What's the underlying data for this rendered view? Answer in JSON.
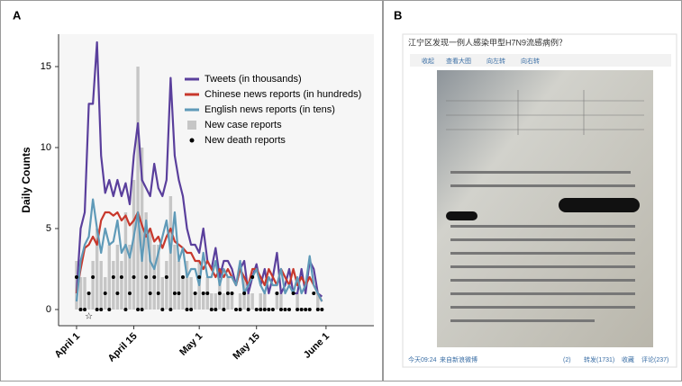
{
  "panel_labels": [
    "A",
    "B"
  ],
  "chart_data": {
    "type": "line",
    "ylabel": "Daily Counts",
    "xlim": [
      -4.4,
      72.7
    ],
    "ylim": [
      -1,
      17
    ],
    "xticks": [
      {
        "value": 0,
        "label": "April 1"
      },
      {
        "value": 14,
        "label": "April 15"
      },
      {
        "value": 30,
        "label": "May 1"
      },
      {
        "value": 44,
        "label": "May 15"
      },
      {
        "value": 61,
        "label": "June 1"
      }
    ],
    "yticks": [
      0,
      5,
      10,
      15
    ],
    "legend": "upper right",
    "annotation": "☆",
    "annotation_x": 3,
    "x": [
      0,
      1,
      2,
      3,
      4,
      5,
      6,
      7,
      8,
      9,
      10,
      11,
      12,
      13,
      14,
      15,
      16,
      17,
      18,
      19,
      20,
      21,
      22,
      23,
      24,
      25,
      26,
      27,
      28,
      29,
      30,
      31,
      32,
      33,
      34,
      35,
      36,
      37,
      38,
      39,
      40,
      41,
      42,
      43,
      44,
      45,
      46,
      47,
      48,
      49,
      50,
      51,
      52,
      53,
      54,
      55,
      56,
      57,
      58,
      59,
      60
    ],
    "series": [
      {
        "name": "Tweets (in thousands)",
        "color": "#5a3f9c",
        "style": "line",
        "values": [
          1,
          5,
          6,
          12.7,
          12.7,
          16.5,
          9.5,
          7.2,
          8,
          7,
          8,
          7,
          7.8,
          6.5,
          9.5,
          11.5,
          8,
          7.5,
          7,
          9,
          7.5,
          7,
          8,
          14.3,
          9.5,
          8,
          7,
          5,
          4,
          4,
          3.5,
          5,
          3,
          2.5,
          3.8,
          2,
          3,
          3,
          2.5,
          1.5,
          2.5,
          3,
          1,
          2,
          2.8,
          1.5,
          2.5,
          1,
          2,
          3.5,
          1,
          1.5,
          2.5,
          1,
          1,
          2.5,
          1,
          3,
          2.5,
          1,
          0.8
        ]
      },
      {
        "name": "Chinese news reports (in hundreds)",
        "color": "#c8382c",
        "style": "line",
        "values": [
          1,
          2.5,
          3.8,
          4,
          4.5,
          4,
          5.5,
          6,
          6,
          5.8,
          6,
          5.5,
          5.8,
          5.2,
          5.5,
          6,
          5.2,
          4.5,
          5,
          4.2,
          4.5,
          3.8,
          4.5,
          5,
          4.2,
          4,
          3.8,
          3.5,
          3.5,
          3,
          3,
          2.5,
          3,
          2.5,
          2,
          2.5,
          2,
          2.5,
          2,
          1.5,
          2.5,
          2,
          1.5,
          2.5,
          2.5,
          2,
          1.5,
          2.5,
          2,
          1.5,
          2.5,
          2,
          1.5,
          2.5,
          1.5,
          2,
          1.5,
          2,
          1.5,
          1,
          0.5
        ]
      },
      {
        "name": "English news reports (in tens)",
        "color": "#5f9ab8",
        "style": "line",
        "values": [
          0.5,
          3,
          4,
          4.5,
          6.8,
          5,
          3.5,
          5,
          4,
          4.2,
          5.5,
          3.5,
          4,
          3.2,
          4.5,
          6,
          3,
          5.5,
          3,
          2.5,
          3.5,
          4.5,
          5.5,
          3.5,
          6,
          3,
          3.8,
          2,
          2.5,
          2.5,
          1.5,
          3.5,
          2,
          2,
          3,
          1.5,
          2.5,
          2,
          2,
          1.5,
          3,
          1,
          1.5,
          2,
          2.5,
          1.5,
          1,
          2,
          1.5,
          1.5,
          2.5,
          1,
          1.5,
          1,
          2,
          1,
          1.5,
          3.3,
          1.5,
          1,
          0.5
        ]
      },
      {
        "name": "New case reports",
        "color": "#c6c6c6",
        "style": "bar",
        "values": [
          3,
          2,
          2,
          1,
          3,
          5,
          3,
          2,
          4,
          3,
          4,
          3,
          6,
          4,
          8,
          15,
          10,
          6,
          5,
          4,
          4,
          2,
          3,
          7,
          4,
          3,
          2,
          3,
          2,
          1,
          3,
          1,
          2,
          1,
          1,
          2,
          1,
          2,
          1,
          0,
          1,
          2,
          1,
          1,
          0,
          1,
          1,
          0,
          0,
          1,
          1,
          0,
          0,
          0,
          1,
          0,
          0,
          0,
          0,
          1,
          0
        ]
      },
      {
        "name": "New death reports",
        "color": "#000000",
        "style": "dot",
        "values": [
          2,
          0,
          0,
          1,
          2,
          0,
          0,
          1,
          0,
          2,
          1,
          2,
          0,
          1,
          2,
          0,
          0,
          2,
          1,
          2,
          1,
          0,
          2,
          0,
          1,
          1,
          2,
          0,
          0,
          1,
          2,
          1,
          1,
          0,
          0,
          1,
          0,
          1,
          1,
          0,
          0,
          1,
          0,
          2,
          0,
          0,
          0,
          0,
          0,
          1,
          0,
          0,
          0,
          1,
          0,
          0,
          0,
          0,
          1,
          0,
          0
        ]
      }
    ]
  },
  "screenshot": {
    "title": "江宁区发现一例人感染甲型H7N9流感病例？",
    "buttons": [
      "收起",
      "查看大图",
      "向左转",
      "向右转"
    ],
    "time": "今天09:24",
    "source": "来自新浪微博",
    "actions": [
      "(2)",
      "转发(1731)",
      "收藏",
      "评论(237)"
    ]
  }
}
